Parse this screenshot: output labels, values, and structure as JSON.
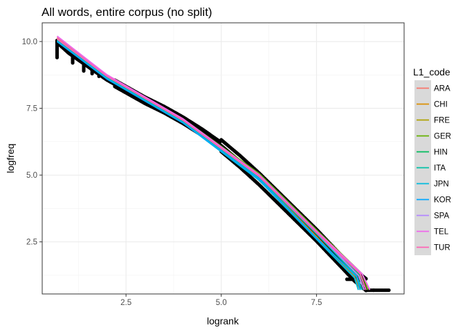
{
  "chart_data": {
    "type": "scatter",
    "title": "All words, entire corpus (no split)",
    "xlabel": "logrank",
    "ylabel": "logfreq",
    "xlim": [
      0.3,
      9.8
    ],
    "ylim": [
      0.55,
      10.7
    ],
    "x_ticks": [
      2.5,
      5.0,
      7.5
    ],
    "x_tick_labels": [
      "2.5",
      "5.0",
      "7.5"
    ],
    "y_ticks": [
      2.5,
      5.0,
      7.5,
      10.0
    ],
    "y_tick_labels": [
      "2.5",
      "5.0",
      "7.5",
      "10.0"
    ],
    "grid": true,
    "legend_placement": "right",
    "legend_title": "L1_code",
    "point_color": "#000000",
    "points_curve": [
      [
        0.69,
        10.0
      ],
      [
        1.0,
        9.6
      ],
      [
        1.5,
        9.1
      ],
      [
        2.0,
        8.6
      ],
      [
        2.5,
        8.2
      ],
      [
        3.0,
        7.8
      ],
      [
        3.5,
        7.45
      ],
      [
        4.0,
        7.05
      ],
      [
        4.5,
        6.6
      ],
      [
        5.0,
        6.1
      ],
      [
        5.5,
        5.5
      ],
      [
        6.0,
        4.85
      ],
      [
        6.5,
        4.15
      ],
      [
        7.0,
        3.45
      ],
      [
        7.5,
        2.75
      ],
      [
        8.0,
        2.0
      ],
      [
        8.5,
        1.25
      ],
      [
        8.8,
        0.9
      ]
    ],
    "points_steps": [
      [
        0.69,
        10.0
      ],
      [
        0.69,
        9.4
      ],
      [
        1.1,
        9.5
      ],
      [
        1.1,
        9.2
      ],
      [
        1.39,
        9.2
      ],
      [
        1.39,
        8.9
      ],
      [
        1.61,
        9.0
      ],
      [
        1.61,
        8.8
      ],
      [
        1.79,
        8.8
      ],
      [
        1.79,
        8.7
      ],
      [
        1.95,
        8.75
      ],
      [
        1.95,
        8.65
      ],
      [
        2.08,
        8.6
      ],
      [
        2.08,
        8.55
      ]
    ],
    "points_tail": [
      [
        8.3,
        1.1
      ],
      [
        8.7,
        1.1
      ],
      [
        8.8,
        0.69
      ],
      [
        9.0,
        0.69
      ],
      [
        9.43,
        0.69
      ]
    ],
    "series": [
      {
        "name": "ARA",
        "color": "#F8766D",
        "x": [
          0.69,
          2.0,
          4.0,
          6.0,
          7.5,
          8.6,
          8.75
        ],
        "y": [
          10.15,
          8.75,
          7.1,
          4.95,
          2.8,
          1.3,
          0.7
        ]
      },
      {
        "name": "CHI",
        "color": "#DB8E00",
        "x": [
          0.69,
          2.0,
          4.0,
          6.0,
          7.5,
          8.5,
          8.65
        ],
        "y": [
          10.05,
          8.65,
          7.0,
          4.85,
          2.7,
          1.2,
          0.7
        ]
      },
      {
        "name": "FRE",
        "color": "#AEA200",
        "x": [
          0.69,
          2.0,
          4.0,
          6.0,
          7.5,
          8.6,
          8.75
        ],
        "y": [
          10.1,
          8.7,
          7.05,
          4.95,
          2.85,
          1.25,
          0.7
        ]
      },
      {
        "name": "GER",
        "color": "#64B200",
        "x": [
          0.69,
          2.0,
          4.0,
          6.0,
          7.5,
          8.7,
          8.85
        ],
        "y": [
          10.1,
          8.7,
          7.1,
          5.05,
          2.95,
          1.3,
          0.7
        ]
      },
      {
        "name": "HIN",
        "color": "#00BD5C",
        "x": [
          0.69,
          2.0,
          4.0,
          6.0,
          7.5,
          8.65,
          8.8
        ],
        "y": [
          10.05,
          8.7,
          7.05,
          5.0,
          2.9,
          1.25,
          0.7
        ]
      },
      {
        "name": "ITA",
        "color": "#00C1A7",
        "x": [
          0.69,
          2.0,
          4.0,
          6.0,
          7.5,
          8.55,
          8.7
        ],
        "y": [
          10.05,
          8.65,
          7.0,
          4.9,
          2.8,
          1.25,
          0.7
        ]
      },
      {
        "name": "JPN",
        "color": "#00BADE",
        "x": [
          0.69,
          2.0,
          4.0,
          6.0,
          7.5,
          8.5,
          8.6
        ],
        "y": [
          10.0,
          8.6,
          6.95,
          4.8,
          2.6,
          1.15,
          0.7
        ]
      },
      {
        "name": "KOR",
        "color": "#00A6FF",
        "x": [
          0.69,
          2.0,
          4.0,
          6.0,
          7.5,
          8.55,
          8.65
        ],
        "y": [
          10.0,
          8.6,
          6.95,
          4.85,
          2.65,
          1.2,
          0.7
        ]
      },
      {
        "name": "SPA",
        "color": "#B385FF",
        "x": [
          0.69,
          2.0,
          4.0,
          6.0,
          7.5,
          8.6,
          8.75
        ],
        "y": [
          10.1,
          8.7,
          7.05,
          4.95,
          2.85,
          1.25,
          0.7
        ]
      },
      {
        "name": "TEL",
        "color": "#EF67EB",
        "x": [
          0.69,
          2.0,
          4.0,
          6.0,
          7.5,
          8.7,
          8.9
        ],
        "y": [
          10.2,
          8.75,
          7.1,
          5.0,
          2.9,
          1.3,
          0.7
        ]
      },
      {
        "name": "TUR",
        "color": "#FF63B6",
        "x": [
          0.69,
          2.0,
          4.0,
          6.0,
          7.5,
          8.65,
          8.8
        ],
        "y": [
          10.1,
          8.7,
          7.05,
          4.95,
          2.85,
          1.3,
          0.7
        ]
      }
    ]
  }
}
